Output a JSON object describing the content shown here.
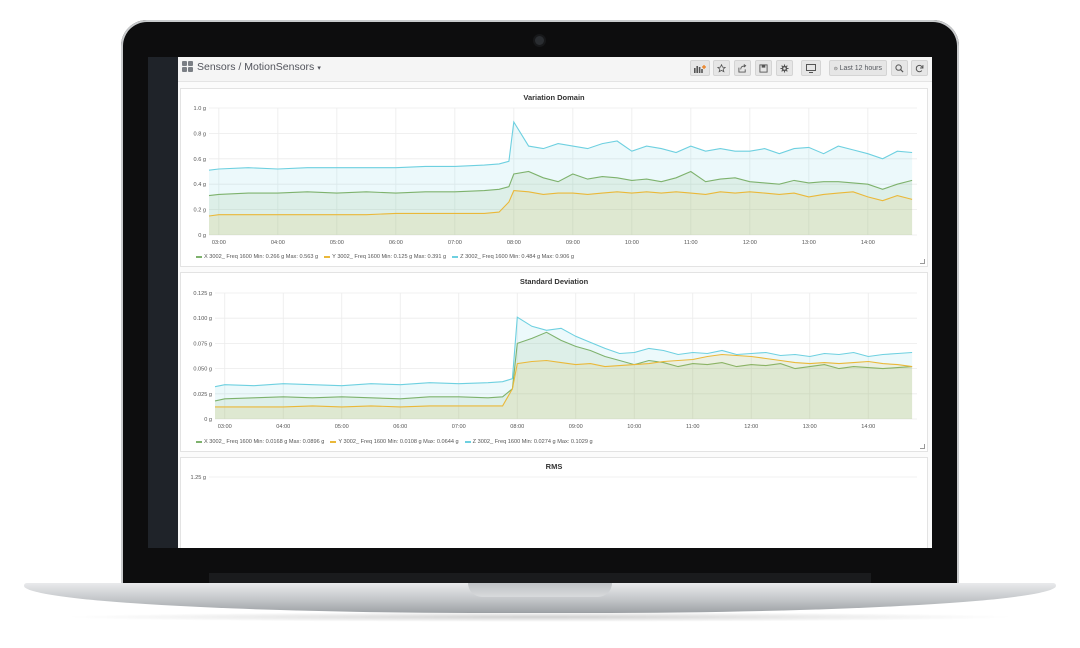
{
  "dashboard": {
    "breadcrumb": "Sensors / MotionSensors",
    "toolbar": {
      "time_range": "Last 12 hours",
      "add_panel_icon": "bar-chart-add-icon",
      "star_icon": "star-icon",
      "share_icon": "share-icon",
      "save_icon": "save-icon",
      "settings_icon": "gear-icon",
      "tv_icon": "monitor-icon",
      "clock_icon": "clock-icon",
      "zoom_icon": "search-icon",
      "refresh_icon": "refresh-icon"
    }
  },
  "colors": {
    "x": "#7eb26d",
    "y": "#eab839",
    "z": "#6ed0e0"
  },
  "panels": [
    {
      "title": "Variation Domain",
      "legend": [
        {
          "label": "X 3002_ Freq 1600  Min: 0.266 g  Max: 0.563 g",
          "color": "#7eb26d"
        },
        {
          "label": "Y 3002_ Freq 1600  Min: 0.125 g  Max: 0.391 g",
          "color": "#eab839"
        },
        {
          "label": "Z 3002_ Freq 1600  Min: 0.484 g  Max: 0.906 g",
          "color": "#6ed0e0"
        }
      ]
    },
    {
      "title": "Standard Deviation",
      "legend": [
        {
          "label": "X 3002_ Freq 1600  Min: 0.0168 g  Max: 0.0896 g",
          "color": "#7eb26d"
        },
        {
          "label": "Y 3002_ Freq 1600  Min: 0.0108 g  Max: 0.0644 g",
          "color": "#eab839"
        },
        {
          "label": "Z 3002_ Freq 1600  Min: 0.0274 g  Max: 0.1029 g",
          "color": "#6ed0e0"
        }
      ]
    },
    {
      "title": "RMS"
    }
  ],
  "chart_data": [
    {
      "type": "area",
      "title": "Variation Domain",
      "ylim": [
        0,
        1.0
      ],
      "yticks": [
        "1.0 g",
        "0.8 g",
        "0.6 g",
        "0.4 g",
        "0.2 g",
        "0 g"
      ],
      "xticks": [
        "03:00",
        "04:00",
        "05:00",
        "06:00",
        "07:00",
        "08:00",
        "09:00",
        "10:00",
        "11:00",
        "12:00",
        "13:00",
        "14:00"
      ],
      "x": [
        "02:50",
        "03:00",
        "03:30",
        "04:00",
        "04:30",
        "05:00",
        "05:30",
        "06:00",
        "06:30",
        "07:00",
        "07:30",
        "07:45",
        "07:55",
        "08:00",
        "08:15",
        "08:30",
        "08:45",
        "09:00",
        "09:15",
        "09:30",
        "09:45",
        "10:00",
        "10:15",
        "10:30",
        "10:45",
        "11:00",
        "11:15",
        "11:30",
        "11:45",
        "12:00",
        "12:15",
        "12:30",
        "12:45",
        "13:00",
        "13:15",
        "13:30",
        "13:45",
        "14:00",
        "14:15",
        "14:30",
        "14:45"
      ],
      "series": [
        {
          "name": "X 3002_ Freq 1600",
          "values": [
            0.31,
            0.32,
            0.33,
            0.33,
            0.34,
            0.33,
            0.34,
            0.33,
            0.34,
            0.34,
            0.35,
            0.36,
            0.38,
            0.48,
            0.5,
            0.45,
            0.42,
            0.48,
            0.44,
            0.46,
            0.45,
            0.43,
            0.44,
            0.42,
            0.45,
            0.5,
            0.42,
            0.44,
            0.45,
            0.42,
            0.41,
            0.4,
            0.43,
            0.41,
            0.42,
            0.42,
            0.41,
            0.4,
            0.36,
            0.4,
            0.43
          ]
        },
        {
          "name": "Y 3002_ Freq 1600",
          "values": [
            0.15,
            0.16,
            0.16,
            0.16,
            0.16,
            0.16,
            0.16,
            0.17,
            0.17,
            0.17,
            0.17,
            0.18,
            0.26,
            0.35,
            0.34,
            0.32,
            0.33,
            0.33,
            0.32,
            0.33,
            0.34,
            0.33,
            0.34,
            0.33,
            0.34,
            0.33,
            0.32,
            0.34,
            0.33,
            0.34,
            0.33,
            0.32,
            0.33,
            0.3,
            0.32,
            0.33,
            0.34,
            0.3,
            0.27,
            0.31,
            0.28
          ]
        },
        {
          "name": "Z 3002_ Freq 1600",
          "values": [
            0.51,
            0.52,
            0.53,
            0.52,
            0.53,
            0.53,
            0.53,
            0.53,
            0.54,
            0.54,
            0.55,
            0.56,
            0.58,
            0.89,
            0.7,
            0.68,
            0.72,
            0.7,
            0.68,
            0.72,
            0.74,
            0.66,
            0.7,
            0.68,
            0.65,
            0.7,
            0.66,
            0.68,
            0.66,
            0.66,
            0.68,
            0.64,
            0.68,
            0.69,
            0.64,
            0.7,
            0.67,
            0.64,
            0.6,
            0.66,
            0.65
          ]
        }
      ]
    },
    {
      "type": "area",
      "title": "Standard Deviation",
      "ylim": [
        0,
        0.125
      ],
      "yticks": [
        "0.125 g",
        "0.100 g",
        "0.075 g",
        "0.050 g",
        "0.025 g",
        "0 g"
      ],
      "xticks": [
        "03:00",
        "04:00",
        "05:00",
        "06:00",
        "07:00",
        "08:00",
        "09:00",
        "10:00",
        "11:00",
        "12:00",
        "13:00",
        "14:00"
      ],
      "x": [
        "02:50",
        "03:00",
        "03:30",
        "04:00",
        "04:30",
        "05:00",
        "05:30",
        "06:00",
        "06:30",
        "07:00",
        "07:30",
        "07:45",
        "07:55",
        "08:00",
        "08:15",
        "08:30",
        "08:45",
        "09:00",
        "09:15",
        "09:30",
        "09:45",
        "10:00",
        "10:15",
        "10:30",
        "10:45",
        "11:00",
        "11:15",
        "11:30",
        "11:45",
        "12:00",
        "12:15",
        "12:30",
        "12:45",
        "13:00",
        "13:15",
        "13:30",
        "13:45",
        "14:00",
        "14:15",
        "14:30",
        "14:45"
      ],
      "series": [
        {
          "name": "X 3002_ Freq 1600",
          "values": [
            0.018,
            0.02,
            0.021,
            0.022,
            0.021,
            0.022,
            0.021,
            0.02,
            0.022,
            0.022,
            0.021,
            0.022,
            0.03,
            0.075,
            0.08,
            0.086,
            0.078,
            0.072,
            0.068,
            0.062,
            0.058,
            0.054,
            0.058,
            0.056,
            0.052,
            0.055,
            0.054,
            0.056,
            0.052,
            0.054,
            0.053,
            0.055,
            0.05,
            0.052,
            0.054,
            0.05,
            0.052,
            0.051,
            0.05,
            0.051,
            0.052
          ]
        },
        {
          "name": "Y 3002_ Freq 1600",
          "values": [
            0.012,
            0.012,
            0.012,
            0.012,
            0.013,
            0.012,
            0.013,
            0.012,
            0.013,
            0.013,
            0.013,
            0.013,
            0.03,
            0.055,
            0.057,
            0.058,
            0.056,
            0.054,
            0.055,
            0.052,
            0.053,
            0.054,
            0.055,
            0.057,
            0.058,
            0.059,
            0.062,
            0.064,
            0.063,
            0.062,
            0.06,
            0.058,
            0.056,
            0.055,
            0.056,
            0.055,
            0.056,
            0.057,
            0.055,
            0.054,
            0.052
          ]
        },
        {
          "name": "Z 3002_ Freq 1600",
          "values": [
            0.032,
            0.034,
            0.033,
            0.035,
            0.034,
            0.033,
            0.035,
            0.034,
            0.036,
            0.035,
            0.036,
            0.037,
            0.04,
            0.101,
            0.092,
            0.088,
            0.09,
            0.082,
            0.076,
            0.07,
            0.065,
            0.066,
            0.07,
            0.068,
            0.064,
            0.066,
            0.065,
            0.068,
            0.064,
            0.065,
            0.066,
            0.063,
            0.064,
            0.062,
            0.065,
            0.064,
            0.066,
            0.062,
            0.064,
            0.065,
            0.066
          ]
        }
      ]
    },
    {
      "type": "area",
      "title": "RMS",
      "yticks": [
        "1.25 g"
      ],
      "series": []
    }
  ]
}
